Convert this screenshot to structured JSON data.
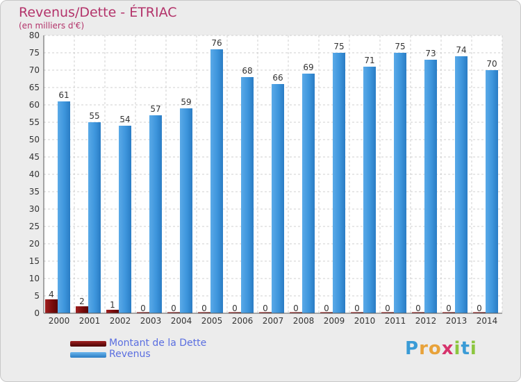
{
  "title": "Revenus/Dette - ÉTRIAC",
  "subtitle": "(en milliers d'€)",
  "brand": {
    "letters": [
      {
        "char": "P",
        "color": "#3a9bd6"
      },
      {
        "char": "r",
        "color": "#e8a23a"
      },
      {
        "char": "o",
        "color": "#e8a23a"
      },
      {
        "char": "x",
        "color": "#d6336c"
      },
      {
        "char": "i",
        "color": "#8cc63f"
      },
      {
        "char": "t",
        "color": "#3a9bd6"
      },
      {
        "char": "i",
        "color": "#8cc63f"
      }
    ]
  },
  "legend": [
    {
      "label": "Montant de la Dette",
      "color": "#7a0c0c"
    },
    {
      "label": "Revenus",
      "color": "#3d95dc"
    }
  ],
  "chart_data": {
    "type": "bar",
    "categories": [
      "2000",
      "2001",
      "2002",
      "2003",
      "2004",
      "2005",
      "2006",
      "2007",
      "2008",
      "2009",
      "2010",
      "2011",
      "2012",
      "2013",
      "2014"
    ],
    "series": [
      {
        "name": "Montant de la Dette",
        "color": "#7a0c0c",
        "values": [
          4,
          2,
          1,
          0,
          0,
          0,
          0,
          0,
          0,
          0,
          0,
          0,
          0,
          0,
          0
        ]
      },
      {
        "name": "Revenus",
        "color": "#3d95dc",
        "values": [
          61,
          55,
          54,
          57,
          59,
          76,
          68,
          66,
          69,
          75,
          71,
          75,
          73,
          74,
          70
        ]
      }
    ],
    "ylim": [
      0,
      80
    ],
    "yticks": [
      0,
      5,
      10,
      15,
      20,
      25,
      30,
      35,
      40,
      45,
      50,
      55,
      60,
      65,
      70,
      75,
      80
    ],
    "grid": true
  }
}
